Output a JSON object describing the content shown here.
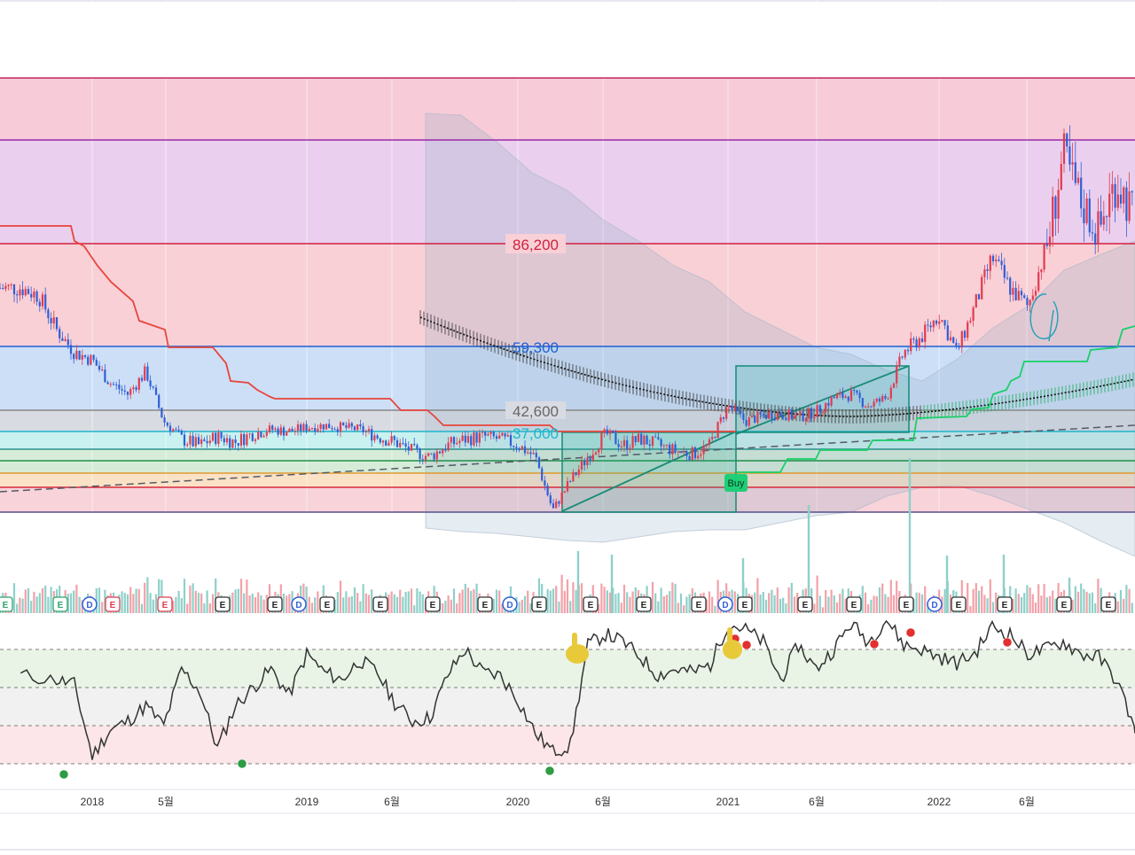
{
  "chart_data": [
    {
      "type": "candlestick",
      "title": "",
      "price_levels": [
        {
          "value": 86200,
          "label": "86,200",
          "color": "#d0213c"
        },
        {
          "value": 59300,
          "label": "59,300",
          "color": "#1f5fd1"
        },
        {
          "value": 42600,
          "label": "42,600",
          "color": "#777777"
        },
        {
          "value": 37000,
          "label": "37,000",
          "color": "#1bb6cc"
        }
      ],
      "annotations": [
        {
          "text": "Buy",
          "color": "#1fcf78"
        }
      ],
      "x_axis_ticks": [
        "2018",
        "5월",
        "2019",
        "6월",
        "2020",
        "6월",
        "2021",
        "6월",
        "2022",
        "6월"
      ],
      "close_series": [
        {
          "date": "2017-09",
          "close": 75000
        },
        {
          "date": "2017-10",
          "close": 73000
        },
        {
          "date": "2017-11",
          "close": 64000
        },
        {
          "date": "2017-12",
          "close": 58000
        },
        {
          "date": "2018-01",
          "close": 56000
        },
        {
          "date": "2018-02",
          "close": 50000
        },
        {
          "date": "2018-03",
          "close": 47000
        },
        {
          "date": "2018-04",
          "close": 53000
        },
        {
          "date": "2018-05",
          "close": 40000
        },
        {
          "date": "2018-06",
          "close": 36000
        },
        {
          "date": "2018-07",
          "close": 35000
        },
        {
          "date": "2018-08",
          "close": 36500
        },
        {
          "date": "2018-09",
          "close": 35500
        },
        {
          "date": "2018-10",
          "close": 37000
        },
        {
          "date": "2018-11",
          "close": 38000
        },
        {
          "date": "2018-12",
          "close": 37500
        },
        {
          "date": "2019-01",
          "close": 38500
        },
        {
          "date": "2019-02",
          "close": 39000
        },
        {
          "date": "2019-03",
          "close": 38500
        },
        {
          "date": "2019-04",
          "close": 38000
        },
        {
          "date": "2019-05",
          "close": 36500
        },
        {
          "date": "2019-06",
          "close": 35500
        },
        {
          "date": "2019-07",
          "close": 34000
        },
        {
          "date": "2019-08",
          "close": 33000
        },
        {
          "date": "2019-09",
          "close": 35000
        },
        {
          "date": "2019-10",
          "close": 36000
        },
        {
          "date": "2019-11",
          "close": 36500
        },
        {
          "date": "2019-12",
          "close": 36000
        },
        {
          "date": "2020-01",
          "close": 35000
        },
        {
          "date": "2020-02",
          "close": 33000
        },
        {
          "date": "2020-03",
          "close": 24000
        },
        {
          "date": "2020-04",
          "close": 29000
        },
        {
          "date": "2020-05",
          "close": 33000
        },
        {
          "date": "2020-06",
          "close": 37000
        },
        {
          "date": "2020-07",
          "close": 35000
        },
        {
          "date": "2020-08",
          "close": 36000
        },
        {
          "date": "2020-09",
          "close": 35000
        },
        {
          "date": "2020-10",
          "close": 34000
        },
        {
          "date": "2020-11",
          "close": 33500
        },
        {
          "date": "2020-12",
          "close": 35000
        },
        {
          "date": "2021-01",
          "close": 44000
        },
        {
          "date": "2021-02",
          "close": 40000
        },
        {
          "date": "2021-03",
          "close": 41500
        },
        {
          "date": "2021-04",
          "close": 42000
        },
        {
          "date": "2021-05",
          "close": 41000
        },
        {
          "date": "2021-06",
          "close": 42500
        },
        {
          "date": "2021-07",
          "close": 46000
        },
        {
          "date": "2021-08",
          "close": 47000
        },
        {
          "date": "2021-09",
          "close": 44000
        },
        {
          "date": "2021-10",
          "close": 46000
        },
        {
          "date": "2021-11",
          "close": 58000
        },
        {
          "date": "2021-12",
          "close": 62000
        },
        {
          "date": "2022-01",
          "close": 68000
        },
        {
          "date": "2022-02",
          "close": 58000
        },
        {
          "date": "2022-03",
          "close": 70000
        },
        {
          "date": "2022-04",
          "close": 83000
        },
        {
          "date": "2022-05",
          "close": 75000
        },
        {
          "date": "2022-06",
          "close": 70000
        },
        {
          "date": "2022-07",
          "close": 85000
        },
        {
          "date": "2022-08",
          "close": 98000
        },
        {
          "date": "2022-09",
          "close": 92000
        },
        {
          "date": "2022-10",
          "close": 88000
        },
        {
          "date": "2022-11",
          "close": 95000
        },
        {
          "date": "2022-12",
          "close": 90000
        }
      ]
    },
    {
      "type": "bar",
      "title": "",
      "event_markers": [
        "E",
        "E",
        "D",
        "E",
        "E",
        "E",
        "E",
        "D",
        "E",
        "E",
        "E",
        "E",
        "D",
        "E",
        "E",
        "E",
        "E",
        "D",
        "E",
        "E",
        "E",
        "E",
        "D",
        "E",
        "E",
        "E",
        "E"
      ]
    },
    {
      "type": "line",
      "title": "",
      "oscillator": [
        {
          "date": "2017-09",
          "value": 58
        },
        {
          "date": "2017-11",
          "value": 55
        },
        {
          "date": "2017-12",
          "value": 52
        },
        {
          "date": "2018-01",
          "value": 5
        },
        {
          "date": "2018-02",
          "value": 22
        },
        {
          "date": "2018-03",
          "value": 28
        },
        {
          "date": "2018-04",
          "value": 38
        },
        {
          "date": "2018-05",
          "value": 25
        },
        {
          "date": "2018-06",
          "value": 62
        },
        {
          "date": "2018-07",
          "value": 48
        },
        {
          "date": "2018-08",
          "value": 10
        },
        {
          "date": "2018-09",
          "value": 38
        },
        {
          "date": "2018-10",
          "value": 50
        },
        {
          "date": "2018-11",
          "value": 62
        },
        {
          "date": "2018-12",
          "value": 45
        },
        {
          "date": "2019-01",
          "value": 72
        },
        {
          "date": "2019-02",
          "value": 60
        },
        {
          "date": "2019-03",
          "value": 55
        },
        {
          "date": "2019-04",
          "value": 68
        },
        {
          "date": "2019-05",
          "value": 60
        },
        {
          "date": "2019-06",
          "value": 40
        },
        {
          "date": "2019-07",
          "value": 28
        },
        {
          "date": "2019-08",
          "value": 30
        },
        {
          "date": "2019-09",
          "value": 58
        },
        {
          "date": "2019-10",
          "value": 75
        },
        {
          "date": "2019-11",
          "value": 60
        },
        {
          "date": "2019-12",
          "value": 58
        },
        {
          "date": "2020-01",
          "value": 42
        },
        {
          "date": "2020-02",
          "value": 20
        },
        {
          "date": "2020-03",
          "value": 8
        },
        {
          "date": "2020-04",
          "value": 12
        },
        {
          "date": "2020-05",
          "value": 78
        },
        {
          "date": "2020-06",
          "value": 85
        },
        {
          "date": "2020-07",
          "value": 80
        },
        {
          "date": "2020-08",
          "value": 70
        },
        {
          "date": "2020-09",
          "value": 58
        },
        {
          "date": "2020-10",
          "value": 62
        },
        {
          "date": "2020-11",
          "value": 60
        },
        {
          "date": "2020-12",
          "value": 65
        },
        {
          "date": "2021-01",
          "value": 92
        },
        {
          "date": "2021-02",
          "value": 88
        },
        {
          "date": "2021-03",
          "value": 80
        },
        {
          "date": "2021-04",
          "value": 55
        },
        {
          "date": "2021-05",
          "value": 78
        },
        {
          "date": "2021-06",
          "value": 62
        },
        {
          "date": "2021-07",
          "value": 75
        },
        {
          "date": "2021-08",
          "value": 92
        },
        {
          "date": "2021-09",
          "value": 80
        },
        {
          "date": "2021-10",
          "value": 95
        },
        {
          "date": "2021-11",
          "value": 78
        },
        {
          "date": "2021-12",
          "value": 75
        },
        {
          "date": "2022-01",
          "value": 70
        },
        {
          "date": "2022-02",
          "value": 66
        },
        {
          "date": "2022-03",
          "value": 72
        },
        {
          "date": "2022-04",
          "value": 90
        },
        {
          "date": "2022-05",
          "value": 85
        },
        {
          "date": "2022-06",
          "value": 72
        },
        {
          "date": "2022-07",
          "value": 75
        },
        {
          "date": "2022-08",
          "value": 80
        },
        {
          "date": "2022-09",
          "value": 72
        },
        {
          "date": "2022-10",
          "value": 70
        },
        {
          "date": "2022-11",
          "value": 55
        },
        {
          "date": "2022-12",
          "value": 25
        }
      ],
      "bands": [
        0,
        30,
        50,
        70,
        100
      ]
    }
  ],
  "colors": {
    "bull": "#e23b4f",
    "bear": "#2f5fd6",
    "vol_up": "#f3a1a8",
    "vol_down": "#8fd0c9",
    "oscillator": "#333333",
    "signal_low": "#2e9b45",
    "signal_high": "#e23030",
    "trail_red": "#e8453c",
    "trail_green": "#18d068"
  }
}
